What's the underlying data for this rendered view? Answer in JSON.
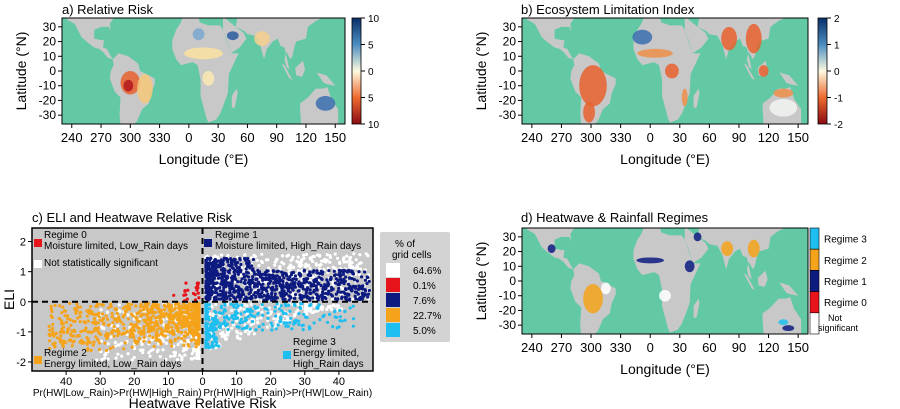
{
  "colors": {
    "ocean": "#63c9a5",
    "land": "#c8c8c8",
    "regime0": "#e8141b",
    "regime1": "#0d1a80",
    "regime2": "#f5a31a",
    "regime3": "#1fbef0",
    "not_significant": "#ffffff"
  },
  "map_axes": {
    "xlabel": "Longitude (°E)",
    "ylabel": "Latitude (°N)",
    "xticks": [
      "240",
      "270",
      "300",
      "330",
      "0",
      "30",
      "60",
      "90",
      "120",
      "150"
    ],
    "yticks": [
      "30",
      "20",
      "10",
      "0",
      "-10",
      "-20",
      "-30"
    ]
  },
  "chart_data": [
    {
      "type": "heatmap",
      "title": "a) Relative Risk",
      "colorbar_ticks": [
        "10",
        "5",
        "0",
        "5",
        "10"
      ],
      "colormap": "RdYlBu"
    },
    {
      "type": "heatmap",
      "title": "b) Ecosystem Limitation Index",
      "colorbar_ticks": [
        "2",
        "1",
        "0",
        "-1",
        "-2"
      ],
      "colormap": "RdYlBu"
    },
    {
      "type": "scatter",
      "title": "c) ELI and Heatwave Relative Risk",
      "xlabel": "Heatwave Relative Risk",
      "ylabel": "ELI",
      "xlabel_left": "Pr(HW|Low_Rain)>Pr(HW|High_Rain)",
      "xlabel_right": "Pr(HW|High_Rain)>Pr(HW|Low_Rain)",
      "xticks_left": [
        "40",
        "30",
        "20",
        "10"
      ],
      "xticks_right": [
        "0",
        "10",
        "20",
        "30",
        "40"
      ],
      "yticks": [
        "2",
        "1",
        "0",
        "-1",
        "-2"
      ],
      "xlim": [
        -50,
        50
      ],
      "ylim": [
        -2.3,
        2.45
      ],
      "annotations": {
        "regime0": [
          "Regime 0",
          "Moisture limited, Low_Rain days"
        ],
        "regime1": [
          "Regime 1",
          "Moisture limited, High_Rain days"
        ],
        "not_sig": "Not statistically significant",
        "regime2": [
          "Regime 2",
          "Energy limited, Low_Rain days"
        ],
        "regime3": [
          "Regime 3",
          "Energy limited,",
          "High_Rain days"
        ]
      },
      "legend": {
        "title": [
          "% of",
          "grid cells"
        ],
        "entries": [
          {
            "color": "#ffffff",
            "label": "64.6%"
          },
          {
            "color": "#e8141b",
            "label": "0.1%"
          },
          {
            "color": "#0d1a80",
            "label": "7.6%"
          },
          {
            "color": "#f5a31a",
            "label": "22.7%"
          },
          {
            "color": "#1fbef0",
            "label": "5.0%"
          }
        ]
      }
    },
    {
      "type": "heatmap",
      "title": "d) Heatwave & Rainfall Regimes",
      "legend": [
        "Regime 3",
        "Regime 2",
        "Regime 1",
        "Regime 0",
        "Not significant"
      ]
    }
  ]
}
